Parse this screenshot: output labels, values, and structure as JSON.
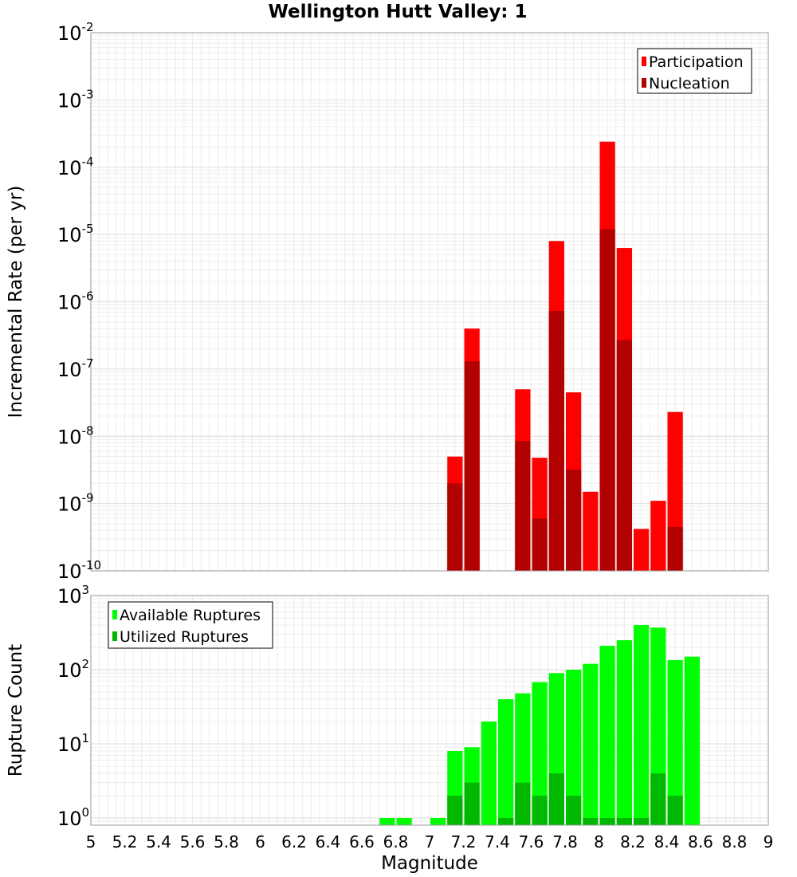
{
  "chart_data": [
    {
      "type": "bar",
      "title": "Wellington Hutt Valley: 1",
      "xlabel": "",
      "ylabel": "Incremental Rate (per yr)",
      "y_scale": "log",
      "ylim": [
        1e-10,
        0.01
      ],
      "y_tick_labels": [
        {
          "base": "10",
          "exp": "-10"
        },
        {
          "base": "10",
          "exp": "-9"
        },
        {
          "base": "10",
          "exp": "-8"
        },
        {
          "base": "10",
          "exp": "-7"
        },
        {
          "base": "10",
          "exp": "-6"
        },
        {
          "base": "10",
          "exp": "-5"
        },
        {
          "base": "10",
          "exp": "-4"
        },
        {
          "base": "10",
          "exp": "-3"
        },
        {
          "base": "10",
          "exp": "-2"
        }
      ],
      "xlim": [
        5,
        9
      ],
      "bar_width": 0.1,
      "grid": true,
      "legend_position": "top-right",
      "series": [
        {
          "name": "Participation",
          "color": "#ff0000",
          "x": [
            7.15,
            7.25,
            7.55,
            7.65,
            7.75,
            7.85,
            7.95,
            8.05,
            8.15,
            8.25,
            8.35,
            8.45
          ],
          "values": [
            5e-09,
            4e-07,
            5e-08,
            4.8e-09,
            8e-06,
            4.5e-08,
            1.5e-09,
            0.00024,
            6.3e-06,
            4.2e-10,
            1.1e-09,
            2.3e-08
          ]
        },
        {
          "name": "Nucleation",
          "color": "#b30000",
          "x": [
            7.15,
            7.25,
            7.55,
            7.65,
            7.75,
            7.85,
            7.95,
            8.05,
            8.15,
            8.25,
            8.35,
            8.45
          ],
          "values": [
            2e-09,
            1.3e-07,
            8.5e-09,
            6e-10,
            7.3e-07,
            3.2e-09,
            0,
            1.2e-05,
            2.7e-07,
            0,
            0,
            4.5e-10
          ]
        }
      ]
    },
    {
      "type": "bar",
      "title": "",
      "xlabel": "Magnitude",
      "ylabel": "Rupture Count",
      "y_scale": "log",
      "ylim": [
        0.8,
        1000
      ],
      "y_tick_labels": [
        {
          "base": "10",
          "exp": "0"
        },
        {
          "base": "10",
          "exp": "1"
        },
        {
          "base": "10",
          "exp": "2"
        },
        {
          "base": "10",
          "exp": "3"
        }
      ],
      "xlim": [
        5,
        9
      ],
      "x_tick_labels": [
        "5",
        "5.2",
        "5.4",
        "5.6",
        "5.8",
        "6",
        "6.2",
        "6.4",
        "6.6",
        "6.8",
        "7",
        "7.2",
        "7.4",
        "7.6",
        "7.8",
        "8",
        "8.2",
        "8.4",
        "8.6",
        "8.8",
        "9"
      ],
      "bar_width": 0.1,
      "grid": true,
      "legend_position": "top-left",
      "series": [
        {
          "name": "Available Ruptures",
          "color": "#00ff00",
          "x": [
            6.75,
            6.85,
            7.05,
            7.15,
            7.25,
            7.35,
            7.45,
            7.55,
            7.65,
            7.75,
            7.85,
            7.95,
            8.05,
            8.15,
            8.25,
            8.35,
            8.45,
            8.55
          ],
          "values": [
            1,
            1,
            1,
            8,
            9,
            20,
            40,
            48,
            68,
            90,
            100,
            120,
            210,
            250,
            400,
            370,
            135,
            150
          ]
        },
        {
          "name": "Utilized Ruptures",
          "color": "#00b800",
          "x": [
            7.15,
            7.25,
            7.45,
            7.55,
            7.65,
            7.75,
            7.85,
            7.95,
            8.05,
            8.15,
            8.25,
            8.35,
            8.45
          ],
          "values": [
            2,
            3,
            1,
            3,
            2,
            4,
            2,
            1,
            1,
            1,
            1,
            4,
            2
          ]
        }
      ]
    }
  ]
}
